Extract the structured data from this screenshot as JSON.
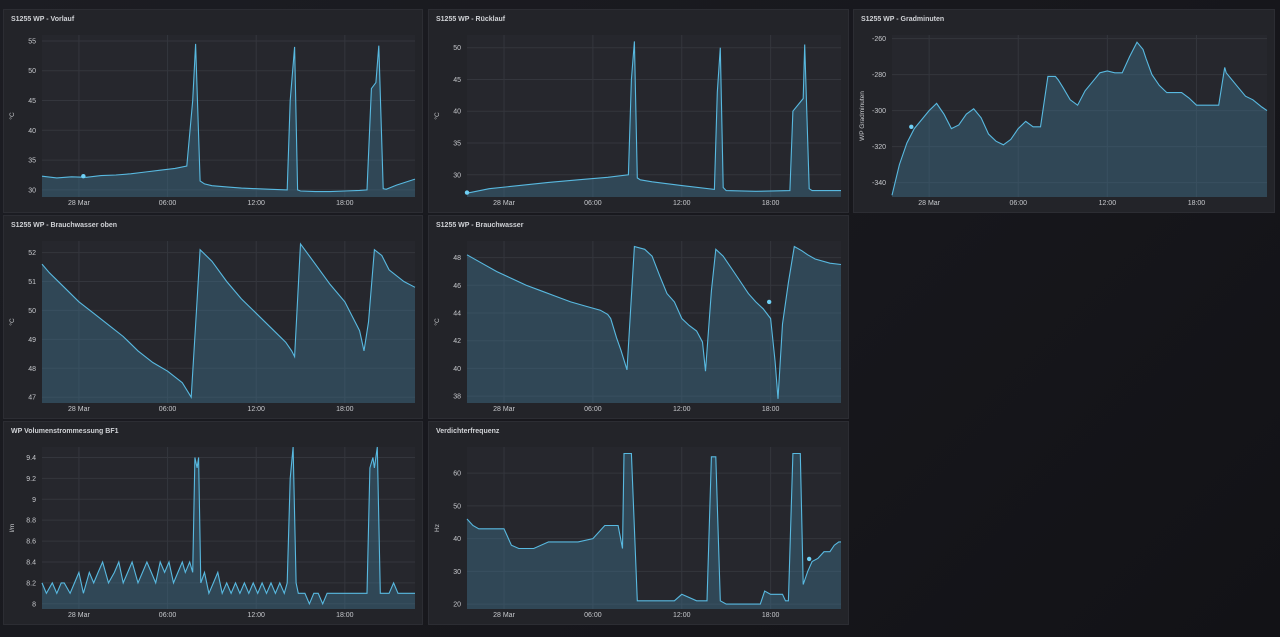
{
  "panels": [
    {
      "id": "p1",
      "title": "S1255 WP - Vorlauf",
      "ylabel": "°C"
    },
    {
      "id": "p2",
      "title": "S1255 WP - Rücklauf",
      "ylabel": "°C"
    },
    {
      "id": "p3",
      "title": "S1255 WP - Gradminuten",
      "ylabel": "WP Gradminuten"
    },
    {
      "id": "p4",
      "title": "S1255 WP - Brauchwasser oben",
      "ylabel": "°C"
    },
    {
      "id": "p5",
      "title": "S1255 WP - Brauchwasser",
      "ylabel": "°C"
    },
    {
      "id": "p6",
      "title": "WP Volumenstrommessung BF1",
      "ylabel": "l/m"
    },
    {
      "id": "p7",
      "title": "Verdichterfrequenz",
      "ylabel": "Hz"
    }
  ],
  "colors": {
    "line": "#58b9e0",
    "fill": "#3f6f8a",
    "marker": "#6fd0f5",
    "panel": "#232429",
    "grid": "#34363d"
  },
  "chart_data": [
    {
      "type": "area",
      "panel": "p1",
      "title": "S1255 WP - Vorlauf",
      "ylabel": "°C",
      "x_ticks": [
        "28 Mar",
        "06:00",
        "12:00",
        "18:00"
      ],
      "xlim": [
        -2.5,
        22.75
      ],
      "ylim": [
        28.8,
        56
      ],
      "y_ticks": [
        30,
        35,
        40,
        45,
        50,
        55
      ],
      "marker": [
        0.3,
        32.3
      ],
      "series": [
        {
          "x": [
            -2.5,
            -1.5,
            -0.5,
            0.5,
            1.5,
            2.5,
            3.5,
            4.5,
            5.5,
            6.5,
            7.3,
            7.7,
            7.9,
            8.2,
            8.5,
            9,
            10,
            11,
            12,
            13,
            14.1,
            14.3,
            14.6,
            14.8,
            15,
            16,
            17,
            18,
            19,
            19.5,
            19.8,
            20.1,
            20.3,
            20.6,
            20.8,
            21.5,
            22.75
          ],
          "y": [
            32.3,
            32,
            32.2,
            32.1,
            32.4,
            32.5,
            32.7,
            33,
            33.3,
            33.6,
            34,
            45,
            54.5,
            31.5,
            31,
            30.7,
            30.5,
            30.3,
            30.2,
            30.1,
            30,
            45,
            54,
            30,
            29.8,
            29.7,
            29.7,
            29.8,
            29.9,
            30,
            47,
            48,
            54.2,
            30.2,
            30.1,
            30.8,
            31.8
          ]
        }
      ]
    },
    {
      "type": "area",
      "panel": "p2",
      "title": "S1255 WP - Rücklauf",
      "ylabel": "°C",
      "x_ticks": [
        "28 Mar",
        "06:00",
        "12:00",
        "18:00"
      ],
      "xlim": [
        -2.5,
        22.75
      ],
      "ylim": [
        26.5,
        52
      ],
      "y_ticks": [
        30,
        35,
        40,
        45,
        50
      ],
      "marker": [
        -2.5,
        27.2
      ],
      "series": [
        {
          "x": [
            -2.5,
            -1,
            1,
            3,
            5,
            7,
            8.4,
            8.6,
            8.8,
            9,
            9.2,
            10,
            12,
            14.2,
            14.4,
            14.6,
            14.8,
            15,
            17,
            19.3,
            19.5,
            20.2,
            20.3,
            20.6,
            20.8,
            21.5,
            22.75
          ],
          "y": [
            27.1,
            27.8,
            28.3,
            28.8,
            29.2,
            29.6,
            30,
            45,
            51,
            29.5,
            29.2,
            28.9,
            28.3,
            27.7,
            43,
            50,
            28,
            27.5,
            27.4,
            27.5,
            40,
            42,
            50.5,
            27.8,
            27.5,
            27.5,
            27.5
          ]
        }
      ]
    },
    {
      "type": "area",
      "panel": "p3",
      "title": "S1255 WP - Gradminuten",
      "ylabel": "WP Gradminuten",
      "x_ticks": [
        "28 Mar",
        "06:00",
        "12:00",
        "18:00"
      ],
      "xlim": [
        -2.5,
        22.75
      ],
      "ylim": [
        -348,
        -258
      ],
      "y_ticks": [
        -340,
        -320,
        -300,
        -280,
        -260
      ],
      "marker": [
        -1.2,
        -309
      ],
      "series": [
        {
          "x": [
            -2.5,
            -2,
            -1.5,
            -1,
            -0.5,
            0,
            0.5,
            1,
            1.5,
            2,
            2.5,
            3,
            3.5,
            4,
            4.5,
            5,
            5.5,
            6,
            6.5,
            7,
            7.5,
            8,
            8.5,
            8.7,
            9,
            9.5,
            10,
            10.5,
            11,
            11.5,
            12,
            12.5,
            13,
            13.5,
            14,
            14.4,
            14.6,
            15,
            15.5,
            16,
            16.5,
            17,
            17.5,
            18,
            18.5,
            19,
            19.5,
            19.9,
            20,
            20.3,
            20.8,
            21.3,
            21.8,
            22.4,
            22.75
          ],
          "y": [
            -347,
            -330,
            -318,
            -310,
            -305,
            -300,
            -296,
            -302,
            -310,
            -308,
            -302,
            -299,
            -304,
            -313,
            -317,
            -319,
            -316,
            -310,
            -306,
            -309,
            -309,
            -281,
            -281,
            -283,
            -287,
            -294,
            -297,
            -289,
            -284,
            -279,
            -278,
            -279,
            -279,
            -270,
            -262,
            -266,
            -271,
            -280,
            -286,
            -290,
            -290,
            -290,
            -293,
            -297,
            -297,
            -297,
            -297,
            -276,
            -279,
            -282,
            -287,
            -292,
            -294,
            -298,
            -300
          ]
        }
      ]
    },
    {
      "type": "area",
      "panel": "p4",
      "title": "S1255 WP - Brauchwasser oben",
      "ylabel": "°C",
      "x_ticks": [
        "28 Mar",
        "06:00",
        "12:00",
        "18:00"
      ],
      "xlim": [
        -2.5,
        22.75
      ],
      "ylim": [
        46.8,
        52.4
      ],
      "y_ticks": [
        47,
        48,
        49,
        50,
        51,
        52
      ],
      "marker": null,
      "series": [
        {
          "x": [
            -2.5,
            -2,
            -1,
            0,
            1,
            2,
            3,
            4,
            5,
            6,
            7,
            7.6,
            7.9,
            8.2,
            9,
            10,
            11,
            12,
            13,
            14,
            14.4,
            14.6,
            15,
            16,
            17,
            18,
            18.5,
            19,
            19.3,
            19.6,
            20,
            20.5,
            21,
            22,
            22.75
          ],
          "y": [
            51.6,
            51.3,
            50.8,
            50.3,
            49.9,
            49.5,
            49.1,
            48.6,
            48.2,
            47.9,
            47.5,
            47,
            49.5,
            52.1,
            51.7,
            51,
            50.4,
            49.9,
            49.4,
            48.9,
            48.6,
            48.4,
            52.3,
            51.6,
            50.9,
            50.3,
            49.8,
            49.3,
            48.6,
            49.6,
            52.1,
            51.9,
            51.4,
            51,
            50.8
          ]
        }
      ]
    },
    {
      "type": "area",
      "panel": "p5",
      "title": "S1255 WP - Brauchwasser",
      "ylabel": "°C",
      "x_ticks": [
        "28 Mar",
        "06:00",
        "12:00",
        "18:00"
      ],
      "xlim": [
        -2.5,
        22.75
      ],
      "ylim": [
        37.5,
        49.2
      ],
      "y_ticks": [
        38,
        40,
        42,
        44,
        46,
        48
      ],
      "marker": [
        17.9,
        44.8
      ],
      "series": [
        {
          "x": [
            -2.5,
            -1.5,
            -0.5,
            0.5,
            1.5,
            2.5,
            3.5,
            4.5,
            5.5,
            6.5,
            7,
            7.2,
            7.6,
            7.9,
            8.3,
            8.8,
            9.5,
            10,
            10.5,
            11,
            11.5,
            12,
            12.5,
            13,
            13.4,
            13.6,
            14,
            14.3,
            14.8,
            15.5,
            16,
            16.5,
            17,
            17.5,
            18,
            18.3,
            18.5,
            18.8,
            19.2,
            19.6,
            20.1,
            20.5,
            21,
            22,
            22.75
          ],
          "y": [
            48.2,
            47.6,
            47,
            46.5,
            46,
            45.6,
            45.2,
            44.8,
            44.5,
            44.2,
            43.9,
            43.6,
            42.2,
            41.3,
            39.9,
            48.8,
            48.6,
            48.1,
            46.7,
            45.4,
            44.8,
            43.6,
            43.1,
            42.7,
            41.9,
            39.8,
            45.6,
            48.6,
            48.1,
            47,
            46.2,
            45.4,
            44.8,
            44.3,
            43.6,
            40.5,
            37.8,
            43.2,
            46.2,
            48.8,
            48.5,
            48.2,
            47.9,
            47.6,
            47.5
          ]
        }
      ]
    },
    {
      "type": "area",
      "panel": "p6",
      "title": "WP Volumenstrommessung BF1",
      "ylabel": "l/m",
      "x_ticks": [
        "28 Mar",
        "06:00",
        "12:00",
        "18:00"
      ],
      "xlim": [
        -2.5,
        22.75
      ],
      "ylim": [
        7.95,
        9.5
      ],
      "y_ticks": [
        8,
        8.2,
        8.4,
        8.6,
        8.8,
        9,
        9.2,
        9.4
      ],
      "y_tick_labels": [
        "8",
        "8.2",
        "8.4",
        "8.6",
        "8.8",
        "9",
        "9.2",
        "9.4"
      ],
      "marker": null,
      "series": [
        {
          "x": [
            -2.5,
            -2.2,
            -1.8,
            -1.5,
            -1.2,
            -1,
            -0.6,
            -0.3,
            0,
            0.3,
            0.7,
            1,
            1.3,
            1.6,
            2,
            2.4,
            2.7,
            3,
            3.3,
            3.6,
            4,
            4.3,
            4.6,
            4.9,
            5.2,
            5.5,
            5.8,
            6.1,
            6.4,
            6.7,
            7,
            7.2,
            7.5,
            7.7,
            7.85,
            8,
            8.1,
            8.25,
            8.5,
            8.8,
            9.1,
            9.4,
            9.7,
            10,
            10.3,
            10.6,
            10.9,
            11.2,
            11.5,
            11.8,
            12.1,
            12.4,
            12.7,
            13,
            13.3,
            13.6,
            13.9,
            14.1,
            14.3,
            14.5,
            14.7,
            14.85,
            15,
            15.3,
            15.6,
            15.9,
            16.2,
            16.5,
            16.8,
            17.1,
            17.4,
            17.7,
            18,
            18.3,
            18.6,
            18.9,
            19.2,
            19.5,
            19.7,
            19.9,
            20,
            20.2,
            20.4,
            20.6,
            20.8,
            21,
            21.3,
            21.6,
            21.9,
            22.2,
            22.5,
            22.75
          ],
          "y": [
            8.2,
            8.1,
            8.2,
            8.1,
            8.2,
            8.2,
            8.1,
            8.2,
            8.3,
            8.1,
            8.3,
            8.2,
            8.3,
            8.4,
            8.2,
            8.3,
            8.4,
            8.2,
            8.3,
            8.4,
            8.2,
            8.3,
            8.4,
            8.3,
            8.2,
            8.4,
            8.3,
            8.4,
            8.2,
            8.3,
            8.4,
            8.3,
            8.4,
            8.3,
            9.4,
            9.3,
            9.4,
            8.2,
            8.3,
            8.1,
            8.2,
            8.3,
            8.1,
            8.2,
            8.1,
            8.2,
            8.1,
            8.2,
            8.1,
            8.2,
            8.1,
            8.2,
            8.1,
            8.2,
            8.1,
            8.2,
            8.1,
            8.2,
            9.2,
            9.5,
            8.2,
            8.1,
            8.1,
            8.1,
            8.0,
            8.1,
            8.1,
            8.0,
            8.1,
            8.1,
            8.1,
            8.1,
            8.1,
            8.1,
            8.1,
            8.1,
            8.1,
            8.1,
            9.3,
            9.4,
            9.3,
            9.5,
            8.1,
            8.1,
            8.1,
            8.1,
            8.2,
            8.1,
            8.1,
            8.1,
            8.1,
            8.1
          ]
        }
      ]
    },
    {
      "type": "area",
      "panel": "p7",
      "title": "Verdichterfrequenz",
      "ylabel": "Hz",
      "x_ticks": [
        "28 Mar",
        "06:00",
        "12:00",
        "18:00"
      ],
      "xlim": [
        -2.5,
        22.75
      ],
      "ylim": [
        18.5,
        68
      ],
      "y_ticks": [
        20,
        30,
        40,
        50,
        60
      ],
      "marker": [
        20.6,
        33.8
      ],
      "series": [
        {
          "x": [
            -2.5,
            -2.1,
            -1.7,
            -1,
            0,
            0.5,
            1,
            1.5,
            2,
            3,
            4,
            5,
            6,
            6.8,
            7.2,
            7.5,
            7.7,
            8,
            8.1,
            8.3,
            8.6,
            9,
            10,
            11,
            11.5,
            12,
            13,
            13.2,
            13.5,
            13.6,
            13.7,
            14,
            14.3,
            14.6,
            15,
            16,
            17,
            17.3,
            17.6,
            18,
            18.3,
            18.6,
            18.8,
            19,
            19.2,
            19.5,
            19.8,
            20,
            20.2,
            20.5,
            20.8,
            21.2,
            21.6,
            22,
            22.3,
            22.6,
            22.75
          ],
          "y": [
            46,
            44,
            43,
            43,
            43,
            38,
            37,
            37,
            37,
            39,
            39,
            39,
            40,
            44,
            44,
            44,
            44,
            37,
            66,
            66,
            66,
            21,
            21,
            21,
            21,
            23,
            21,
            21,
            21,
            21,
            21,
            65,
            65,
            21,
            20,
            20,
            20,
            20,
            24,
            23,
            23,
            23,
            23,
            21,
            21,
            66,
            66,
            66,
            26,
            30,
            33,
            34,
            36,
            36,
            38,
            39,
            39
          ]
        }
      ]
    }
  ]
}
